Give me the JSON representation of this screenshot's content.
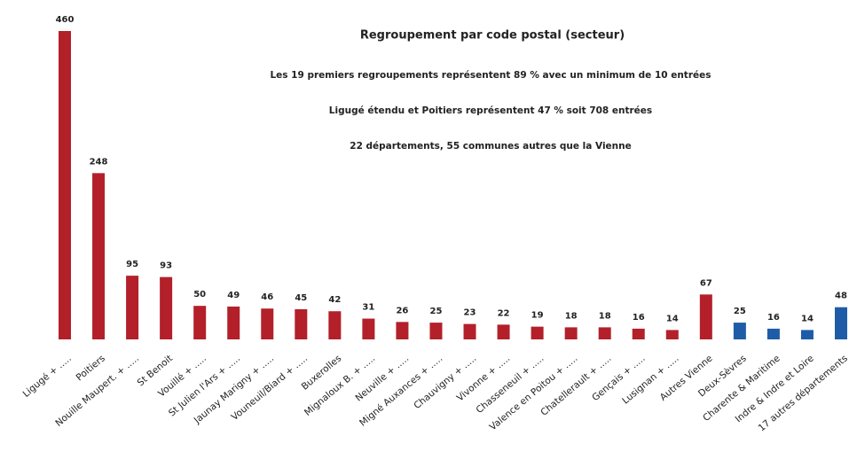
{
  "chart_data": {
    "type": "bar",
    "title": "Regroupement par code postal (secteur)",
    "annotations": [
      "Les 19 premiers regroupements représentent 89 % avec un minimum de 10 entrées",
      "Ligugé étendu et Poitiers représentent 47 % soit 708 entrées",
      "22 départements, 55 communes autres que la Vienne"
    ],
    "categories": [
      "Ligugé + .....",
      "Poitiers",
      "Nouille Maupert. + .....",
      "St Benoit",
      "Vouillé + .....",
      "St Julien l'Ars + .....",
      "Jaunay Marigny + .....",
      "Vouneuil/Biard + .....",
      "Buxerolles",
      "Mignaloux B. + .....",
      "Neuville + .....",
      "Migné Auxances + .....",
      "Chauvigny + .....",
      "Vivonne + .....",
      "Chasseneuil + .....",
      "Valence en Poitou + .....",
      "Chatellerault + .....",
      "Gençais + .....",
      "Lusignan + .....",
      "Autres Vienne",
      "Deux-Sèvres",
      "Charente & Maritime",
      "Indre & Indre et Loire",
      "17 autres départements"
    ],
    "values": [
      460,
      248,
      95,
      93,
      50,
      49,
      46,
      45,
      42,
      31,
      26,
      25,
      23,
      22,
      19,
      18,
      18,
      16,
      14,
      67,
      25,
      16,
      14,
      48
    ],
    "colors": [
      "#b3202a",
      "#b3202a",
      "#b3202a",
      "#b3202a",
      "#b3202a",
      "#b3202a",
      "#b3202a",
      "#b3202a",
      "#b3202a",
      "#b3202a",
      "#b3202a",
      "#b3202a",
      "#b3202a",
      "#b3202a",
      "#b3202a",
      "#b3202a",
      "#b3202a",
      "#b3202a",
      "#b3202a",
      "#b3202a",
      "#1f5ca8",
      "#1f5ca8",
      "#1f5ca8",
      "#1f5ca8"
    ]
  }
}
